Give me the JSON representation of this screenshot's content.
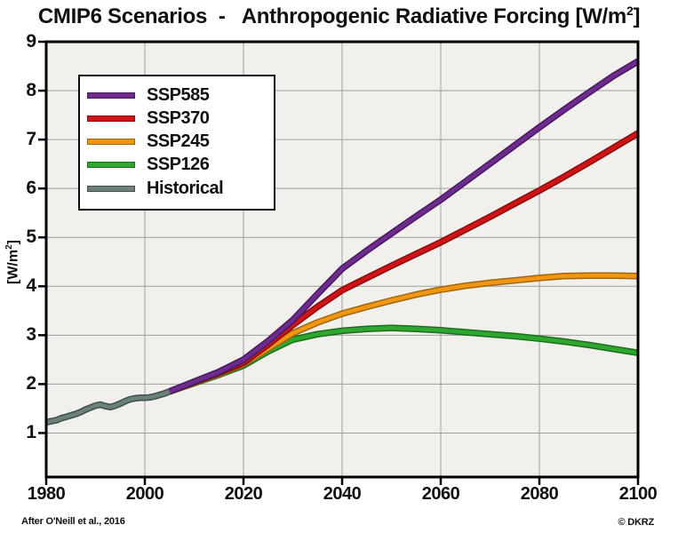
{
  "header": {
    "title_text": "CMIP6 Scenarios  -   Anthropogenic Radiative Forcing ",
    "title_unit_open": "[W/m",
    "title_unit_sup": "2",
    "title_unit_close": "]"
  },
  "y_axis": {
    "label_open": "[W/m",
    "label_sup": "2",
    "label_close": "]"
  },
  "footer": {
    "credit_left": "After O'Neill et al., 2016",
    "credit_right": "© DKRZ"
  },
  "chart_data": {
    "type": "line",
    "title": "CMIP6 Scenarios - Anthropogenic Radiative Forcing [W/m²]",
    "xlabel": "",
    "ylabel": "[W/m²]",
    "xlim": [
      1980,
      2100
    ],
    "ylim": [
      0.1,
      9
    ],
    "xticks": [
      1980,
      2000,
      2020,
      2040,
      2060,
      2080,
      2100
    ],
    "yticks": [
      1,
      2,
      3,
      4,
      5,
      6,
      7,
      8,
      9
    ],
    "grid": true,
    "legend_position": "upper-left",
    "plot_bg": "#f1f0ed",
    "grid_color": "#9e9e9e",
    "frame_color": "#000000",
    "series": [
      {
        "name": "SSP585",
        "color": "#6e2b8e",
        "edge": "#471a5e",
        "x": [
          2005,
          2010,
          2015,
          2020,
          2025,
          2030,
          2035,
          2040,
          2045,
          2050,
          2055,
          2060,
          2065,
          2070,
          2075,
          2080,
          2085,
          2090,
          2095,
          2100
        ],
        "y": [
          1.85,
          2.05,
          2.25,
          2.5,
          2.88,
          3.31,
          3.84,
          4.36,
          4.73,
          5.08,
          5.43,
          5.77,
          6.14,
          6.51,
          6.88,
          7.25,
          7.61,
          7.96,
          8.3,
          8.6
        ]
      },
      {
        "name": "SSP370",
        "color": "#cf1417",
        "edge": "#880c0e",
        "x": [
          2005,
          2010,
          2015,
          2020,
          2025,
          2030,
          2035,
          2040,
          2045,
          2050,
          2055,
          2060,
          2065,
          2070,
          2075,
          2080,
          2085,
          2090,
          2095,
          2100
        ],
        "y": [
          1.85,
          2.04,
          2.23,
          2.44,
          2.81,
          3.21,
          3.58,
          3.92,
          4.17,
          4.42,
          4.66,
          4.9,
          5.16,
          5.42,
          5.69,
          5.96,
          6.24,
          6.53,
          6.83,
          7.13
        ]
      },
      {
        "name": "SSP245",
        "color": "#ef9613",
        "edge": "#a2660c",
        "x": [
          2005,
          2010,
          2015,
          2020,
          2025,
          2030,
          2035,
          2040,
          2045,
          2050,
          2055,
          2060,
          2065,
          2070,
          2075,
          2080,
          2085,
          2090,
          2095,
          2100
        ],
        "y": [
          1.85,
          2.03,
          2.21,
          2.41,
          2.73,
          3.04,
          3.26,
          3.44,
          3.58,
          3.71,
          3.83,
          3.93,
          4.01,
          4.07,
          4.12,
          4.17,
          4.21,
          4.22,
          4.22,
          4.21
        ]
      },
      {
        "name": "SSP126",
        "color": "#2fa72f",
        "edge": "#1d6e1e",
        "x": [
          2005,
          2010,
          2015,
          2020,
          2025,
          2030,
          2035,
          2040,
          2045,
          2050,
          2055,
          2060,
          2065,
          2070,
          2075,
          2080,
          2085,
          2090,
          2095,
          2100
        ],
        "y": [
          1.85,
          2.02,
          2.19,
          2.38,
          2.67,
          2.91,
          3.02,
          3.09,
          3.13,
          3.15,
          3.13,
          3.1,
          3.06,
          3.02,
          2.98,
          2.93,
          2.87,
          2.8,
          2.72,
          2.64
        ]
      },
      {
        "name": "Historical",
        "color": "#6c7f7b",
        "edge": "#41504c",
        "x": [
          1980,
          1981,
          1982,
          1983,
          1984,
          1985,
          1986,
          1987,
          1988,
          1989,
          1990,
          1991,
          1992,
          1993,
          1994,
          1995,
          1996,
          1997,
          1998,
          1999,
          2000,
          2001,
          2002,
          2003,
          2004,
          2005
        ],
        "y": [
          1.22,
          1.24,
          1.26,
          1.3,
          1.33,
          1.36,
          1.39,
          1.43,
          1.48,
          1.52,
          1.56,
          1.58,
          1.55,
          1.53,
          1.56,
          1.6,
          1.65,
          1.69,
          1.71,
          1.72,
          1.72,
          1.73,
          1.75,
          1.78,
          1.81,
          1.85
        ]
      }
    ]
  }
}
